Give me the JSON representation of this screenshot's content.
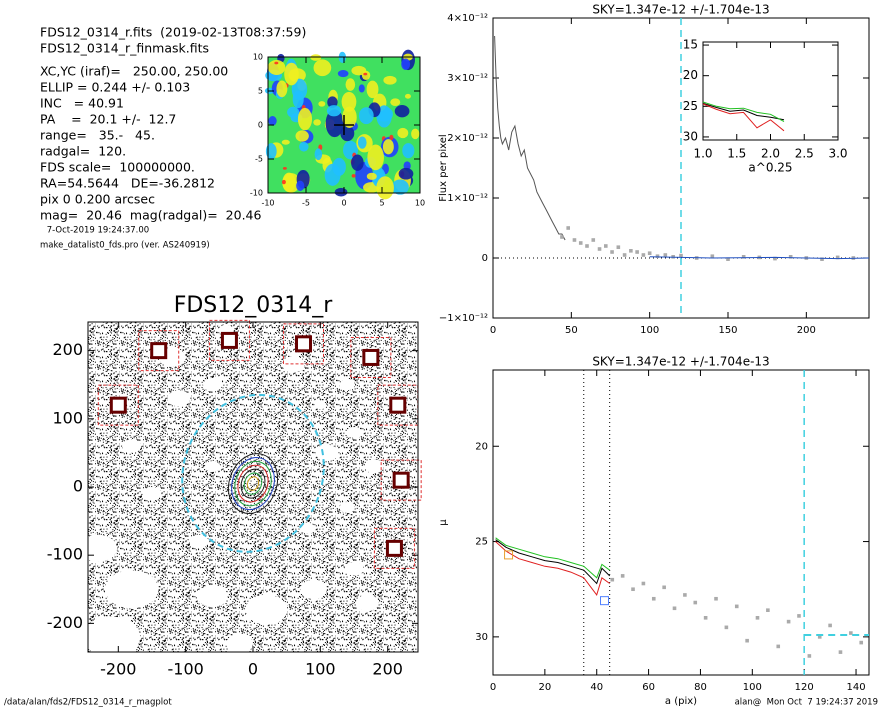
{
  "header": {
    "lines": [
      "FDS12_0314_r.fits  (2019-02-13T08:37:59)",
      "FDS12_0314_r_finmask.fits",
      "XC,YC (iraf)=   250.00, 250.00",
      "ELLIP = 0.244 +/- 0.103",
      "INC   = 40.91",
      "PA    =  20.1 +/-  12.7",
      "range=   35.-   45.",
      "radgal=  120.",
      "FDS scale=  100000000.",
      "RA=54.5644   DE=-36.2812",
      "pix 0 0.200 arcsec",
      "mag=  20.46  mag(radgal)=  20.46"
    ],
    "date": " 7-Oct-2019 19:24:37.00",
    "program": "make_datalist0_fds.pro (ver. AS240919)"
  },
  "footer": {
    "left": "/data/alan/fds2/FDS12_0314_r_magplot",
    "right": "alan@  Mon Oct  7 19:24:37 2019"
  },
  "chart_data": [
    {
      "type": "line",
      "title": "SKY=1.347e-12 +/-1.704e-13",
      "ylabel": "Flux per pixel",
      "xlim": [
        0,
        240
      ],
      "xticks": [
        0,
        50,
        100,
        150,
        200
      ],
      "ylim": [
        -1e-12,
        4e-12
      ],
      "yticks": [
        {
          "value": -1e-12,
          "label": "−1×10⁻¹²"
        },
        {
          "value": 0,
          "label": "0"
        },
        {
          "value": 1e-12,
          "label": "1×10⁻¹²"
        },
        {
          "value": 2e-12,
          "label": "2×10⁻¹²"
        },
        {
          "value": 3e-12,
          "label": "3×10⁻¹²"
        },
        {
          "value": 4e-12,
          "label": "4×10⁻¹²"
        }
      ],
      "series": [
        {
          "color": "#555555",
          "style": "line",
          "x": [
            1,
            2,
            3,
            4,
            5,
            6,
            8,
            10,
            12,
            14,
            16,
            18,
            20,
            22,
            24,
            26,
            28,
            30,
            32,
            34,
            36,
            38,
            40,
            42,
            44,
            46
          ],
          "values": [
            3.7e-12,
            3e-12,
            2.5e-12,
            2.2e-12,
            2e-12,
            1.9e-12,
            2e-12,
            1.8e-12,
            2.1e-12,
            2.2e-12,
            1.9e-12,
            1.7e-12,
            1.8e-12,
            1.5e-12,
            1.4e-12,
            1.3e-12,
            1.1e-12,
            1e-12,
            9e-13,
            8e-13,
            7e-13,
            6e-13,
            5e-13,
            4e-13,
            4e-13,
            3e-13
          ]
        },
        {
          "color": "#aaaaaa",
          "style": "points",
          "x": [
            44,
            48,
            52,
            56,
            60,
            64,
            68,
            72,
            76,
            80,
            84,
            88,
            92,
            96,
            100,
            105,
            110,
            115,
            120,
            130,
            140,
            150,
            160,
            170,
            180,
            190,
            200,
            210,
            220,
            230
          ],
          "values": [
            3.5e-13,
            5e-13,
            3e-13,
            2.5e-13,
            2e-13,
            3e-13,
            1.5e-13,
            2e-13,
            1e-13,
            1.8e-13,
            5e-14,
            1.2e-13,
            1e-13,
            5e-14,
            8e-14,
            3e-14,
            5e-14,
            2e-14,
            4e-14,
            0,
            3e-14,
            -2e-14,
            2e-14,
            1e-14,
            -1e-14,
            2e-14,
            0,
            -2e-14,
            1e-14,
            0
          ]
        },
        {
          "color": "#2050c0",
          "style": "line",
          "x": [
            100,
            140,
            180,
            220,
            240
          ],
          "values": [
            2e-14,
            0,
            1e-14,
            -1e-14,
            0
          ]
        }
      ],
      "hlines": [
        {
          "y": 0,
          "style": "dotted",
          "color": "#000000"
        }
      ],
      "vlines": [
        {
          "x": 120,
          "style": "dashed",
          "color": "#40d0e0"
        }
      ]
    },
    {
      "type": "line",
      "xlabel": "a^0.25",
      "xlim": [
        1,
        3
      ],
      "xticks": [
        {
          "value": 1,
          "label": "1.0"
        },
        {
          "value": 1.5,
          "label": "1.5"
        },
        {
          "value": 2,
          "label": "2.0"
        },
        {
          "value": 2.5,
          "label": "2.5"
        },
        {
          "value": 3,
          "label": "3.0"
        }
      ],
      "ylim": [
        30.5,
        14.5
      ],
      "yticks": [
        15,
        20,
        25,
        30
      ],
      "series": [
        {
          "color": "#000000",
          "style": "line",
          "x": [
            1.0,
            1.2,
            1.4,
            1.6,
            1.8,
            2.0,
            2.2
          ],
          "values": [
            24.5,
            25.2,
            25.8,
            25.6,
            26.5,
            26.8,
            27.2
          ]
        },
        {
          "color": "#e02020",
          "style": "line",
          "x": [
            1.0,
            1.2,
            1.4,
            1.6,
            1.8,
            2.0,
            2.2
          ],
          "values": [
            24.6,
            25.5,
            26.2,
            26.0,
            28.5,
            27.2,
            29.0
          ]
        },
        {
          "color": "#20c020",
          "style": "line",
          "x": [
            1.0,
            1.2,
            1.4,
            1.6,
            1.8,
            2.0,
            2.2
          ],
          "values": [
            24.3,
            25.0,
            25.4,
            25.3,
            26.0,
            26.3,
            27.5
          ]
        }
      ]
    },
    {
      "type": "image",
      "xlim": [
        -10,
        10
      ],
      "xticks": [
        -10,
        -5,
        0,
        5,
        10
      ],
      "ylim": [
        -10,
        10
      ],
      "yticks": [
        -10,
        -5,
        0,
        5,
        10
      ]
    },
    {
      "type": "image",
      "title": "FDS12_0314_r",
      "xlim": [
        -245,
        245
      ],
      "xticks": [
        -200,
        -100,
        0,
        100,
        200
      ],
      "ylim": [
        -242,
        242
      ],
      "yticks": [
        -200,
        -100,
        0,
        100,
        200
      ]
    },
    {
      "type": "line",
      "title": "SKY=1.347e-12 +/-1.704e-13",
      "xlabel": "a (pix)",
      "ylabel": "μ",
      "xlim": [
        0,
        145
      ],
      "xticks": [
        0,
        20,
        40,
        60,
        80,
        100,
        120,
        140
      ],
      "ylim": [
        32,
        16
      ],
      "yticks": [
        20,
        25,
        30
      ],
      "series": [
        {
          "color": "#000000",
          "style": "line",
          "x": [
            1,
            5,
            10,
            15,
            20,
            25,
            30,
            35,
            40,
            42,
            45
          ],
          "values": [
            24.9,
            25.3,
            25.6,
            25.8,
            26.0,
            26.1,
            26.3,
            26.5,
            27.2,
            26.4,
            26.8
          ]
        },
        {
          "color": "#e02020",
          "style": "line",
          "x": [
            1,
            5,
            10,
            15,
            20,
            25,
            30,
            35,
            40,
            42,
            45
          ],
          "values": [
            25.0,
            25.5,
            25.9,
            26.1,
            26.3,
            26.4,
            26.6,
            26.9,
            27.8,
            26.9,
            27.2
          ]
        },
        {
          "color": "#20c020",
          "style": "line",
          "x": [
            1,
            5,
            10,
            15,
            20,
            25,
            30,
            35,
            40,
            42,
            45
          ],
          "values": [
            24.8,
            25.2,
            25.4,
            25.6,
            25.8,
            25.9,
            26.1,
            26.3,
            26.9,
            26.2,
            26.5
          ]
        },
        {
          "color": "#aaaaaa",
          "style": "points",
          "x": [
            46,
            50,
            54,
            58,
            62,
            66,
            70,
            74,
            78,
            82,
            86,
            90,
            94,
            98,
            102,
            106,
            110,
            114,
            118,
            122,
            126,
            130,
            134,
            138,
            142
          ],
          "values": [
            27.0,
            26.8,
            27.5,
            27.2,
            28.0,
            27.4,
            28.5,
            27.8,
            28.2,
            29.0,
            28.0,
            29.5,
            28.4,
            30.2,
            29.0,
            28.6,
            30.5,
            29.2,
            28.9,
            31.0,
            30.0,
            29.4,
            30.8,
            29.8,
            30.3
          ]
        },
        {
          "color": "#40d0e0",
          "style": "dashed",
          "x": [
            120,
            145
          ],
          "values": [
            29.9,
            29.9
          ]
        }
      ],
      "markers": [
        {
          "x": 6,
          "y": 25.7,
          "color": "#e8a030"
        },
        {
          "x": 43,
          "y": 28.1,
          "color": "#5080ff"
        }
      ],
      "vlines": [
        {
          "x": 35,
          "style": "dotted",
          "color": "#000000"
        },
        {
          "x": 45,
          "style": "dotted",
          "color": "#000000"
        },
        {
          "x": 120,
          "style": "dashed",
          "color": "#40d0e0"
        }
      ]
    }
  ]
}
